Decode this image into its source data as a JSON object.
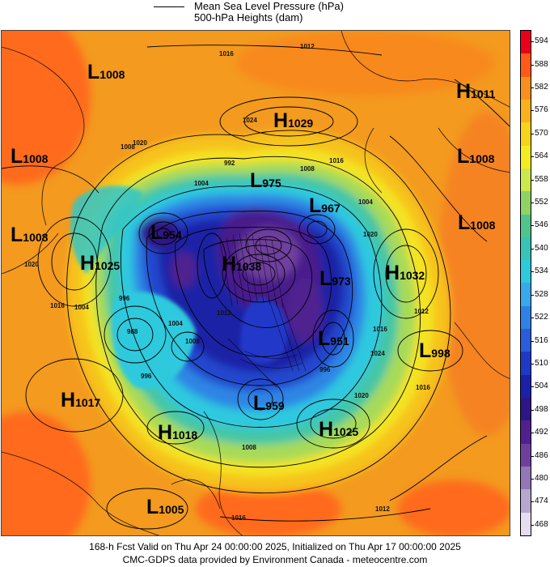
{
  "legend": {
    "line1": "Mean Sea Level Pressure (hPa)",
    "line2": "500-hPa Heights (dam)"
  },
  "pressure_centers": [
    {
      "type": "L",
      "value": "1008"
    },
    {
      "type": "H",
      "value": "1029"
    },
    {
      "type": "H",
      "value": "1011"
    },
    {
      "type": "L",
      "value": "1008"
    },
    {
      "type": "L",
      "value": "975"
    },
    {
      "type": "L",
      "value": "1008"
    },
    {
      "type": "L",
      "value": "967"
    },
    {
      "type": "L",
      "value": "1008"
    },
    {
      "type": "L",
      "value": "1008"
    },
    {
      "type": "L",
      "value": "954"
    },
    {
      "type": "H",
      "value": "1025"
    },
    {
      "type": "H",
      "value": "1038"
    },
    {
      "type": "L",
      "value": "973"
    },
    {
      "type": "H",
      "value": "1032"
    },
    {
      "type": "L",
      "value": "951"
    },
    {
      "type": "L",
      "value": "998"
    },
    {
      "type": "H",
      "value": "1017"
    },
    {
      "type": "L",
      "value": "959"
    },
    {
      "type": "H",
      "value": "1018"
    },
    {
      "type": "H",
      "value": "1025"
    },
    {
      "type": "L",
      "value": "1005"
    }
  ],
  "isobar_labels": [
    "1016",
    "1012",
    "1024",
    "1008",
    "1020",
    "992",
    "1008",
    "1016",
    "1004",
    "1004",
    "1020",
    "1020",
    "1016",
    "1004",
    "996",
    "1012",
    "1004",
    "1012",
    "1008",
    "1016",
    "1024",
    "1016",
    "1020",
    "1012",
    "1016",
    "1008",
    "996",
    "996",
    "988"
  ],
  "colorbar": {
    "values": [
      "594",
      "588",
      "582",
      "576",
      "570",
      "564",
      "558",
      "552",
      "546",
      "540",
      "534",
      "528",
      "522",
      "516",
      "510",
      "504",
      "498",
      "492",
      "486",
      "480",
      "474",
      "468"
    ],
    "colors": [
      "#e8001c",
      "#ff5a1a",
      "#f7901f",
      "#f9b21e",
      "#f6d31c",
      "#f3ec22",
      "#cde84e",
      "#8fd364",
      "#4fc48c",
      "#38c3b4",
      "#2ec9dd",
      "#39a7e9",
      "#2f82e4",
      "#2a5cdb",
      "#2038c8",
      "#1b20a8",
      "#2e1585",
      "#50208f",
      "#6f3f9e",
      "#9276b5",
      "#b7a6cd",
      "#e3ddef"
    ]
  },
  "footer": {
    "line1": "168-h Fcst Valid on Thu Apr 24 00:00:00 2025, Initialized on Thu Apr 17 00:00:00 2025",
    "line2": "CMC-GDPS data provided by Environment Canada - meteocentre.com"
  }
}
